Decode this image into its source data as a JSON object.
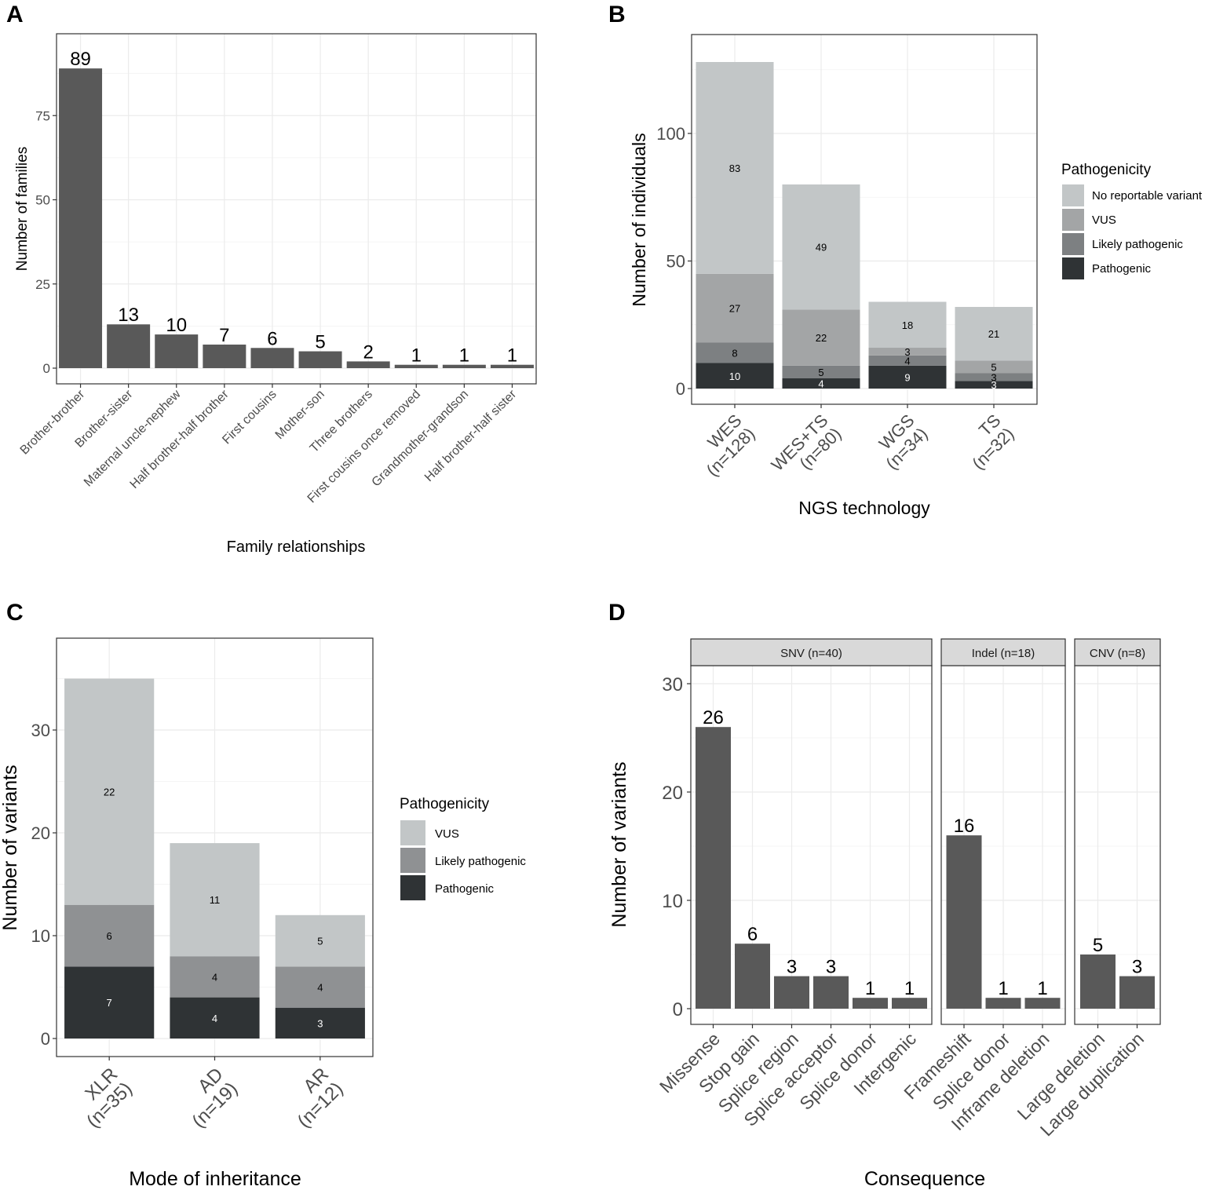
{
  "colors": {
    "bar": "#595959",
    "no_reportable": "#c2c6c7",
    "vus": "#a3a5a6",
    "likely_pathogenic": "#7d8082",
    "pathogenic": "#2f3335",
    "vus_c": "#c2c6c7",
    "likely_pathogenic_c": "#8f9193",
    "pathogenic_c": "#2f3335"
  },
  "panels": {
    "A": {
      "letter": "A"
    },
    "B": {
      "letter": "B",
      "legend_title": "Pathogenicity"
    },
    "C": {
      "letter": "C",
      "legend_title": "Pathogenicity"
    },
    "D": {
      "letter": "D"
    }
  },
  "chart_data": [
    {
      "panel": "A",
      "type": "bar",
      "title": "",
      "xlabel": "Family relationships",
      "ylabel": "Number of families",
      "ylim": [
        0,
        93
      ],
      "yticks": [
        0,
        25,
        50,
        75
      ],
      "categories": [
        "Brother-brother",
        "Brother-sister",
        "Maternal uncle-nephew",
        "Half brother-half brother",
        "First cousins",
        "Mother-son",
        "Three brothers",
        "First cousins once removed",
        "Grandmother-grandson",
        "Half brother-half sister"
      ],
      "values": [
        89,
        13,
        10,
        7,
        6,
        5,
        2,
        1,
        1,
        1
      ]
    },
    {
      "panel": "B",
      "type": "bar",
      "stacked": true,
      "xlabel": "NGS technology",
      "ylabel": "Number of individuals",
      "ylim": [
        0,
        134
      ],
      "yticks": [
        0,
        50,
        100
      ],
      "categories": [
        "WES (n=128)",
        "WES+TS (n=80)",
        "WGS (n=34)",
        "TS (n=32)"
      ],
      "category_lines": [
        [
          "WES",
          "(n=128)"
        ],
        [
          "WES+TS",
          "(n=80)"
        ],
        [
          "WGS",
          "(n=34)"
        ],
        [
          "TS",
          "(n=32)"
        ]
      ],
      "series": [
        {
          "name": "Pathogenic",
          "color_key": "pathogenic",
          "values": [
            10,
            4,
            9,
            3
          ]
        },
        {
          "name": "Likely pathogenic",
          "color_key": "likely_pathogenic",
          "values": [
            8,
            5,
            4,
            3
          ]
        },
        {
          "name": "VUS",
          "color_key": "vus",
          "values": [
            27,
            22,
            3,
            5
          ]
        },
        {
          "name": "No reportable variant",
          "color_key": "no_reportable",
          "values": [
            83,
            49,
            18,
            21
          ]
        }
      ],
      "legend_order": [
        "No reportable variant",
        "VUS",
        "Likely pathogenic",
        "Pathogenic"
      ],
      "legend_position": "right"
    },
    {
      "panel": "C",
      "type": "bar",
      "stacked": true,
      "xlabel": "Mode of inheritance",
      "ylabel": "Number of variants",
      "ylim": [
        0,
        38.5
      ],
      "yticks": [
        0,
        10,
        20,
        30
      ],
      "categories": [
        "XLR (n=35)",
        "AD (n=19)",
        "AR (n=12)"
      ],
      "category_lines": [
        [
          "XLR",
          "(n=35)"
        ],
        [
          "AD",
          "(n=19)"
        ],
        [
          "AR",
          "(n=12)"
        ]
      ],
      "series": [
        {
          "name": "Pathogenic",
          "color_key": "pathogenic_c",
          "values": [
            7,
            4,
            3
          ]
        },
        {
          "name": "Likely pathogenic",
          "color_key": "likely_pathogenic_c",
          "values": [
            6,
            4,
            4
          ]
        },
        {
          "name": "VUS",
          "color_key": "vus_c",
          "values": [
            22,
            11,
            5
          ]
        }
      ],
      "legend_order": [
        "VUS",
        "Likely pathogenic",
        "Pathogenic"
      ],
      "legend_position": "right"
    },
    {
      "panel": "D",
      "type": "bar",
      "faceted": true,
      "xlabel": "Consequence",
      "ylabel": "Number of variants",
      "ylim": [
        0,
        32
      ],
      "yticks": [
        0,
        10,
        20,
        30
      ],
      "facets": [
        {
          "label": "SNV (n=40)",
          "categories": [
            "Missense",
            "Stop gain",
            "Splice region",
            "Splice acceptor",
            "Splice donor",
            "Intergenic"
          ],
          "values": [
            26,
            6,
            3,
            3,
            1,
            1
          ]
        },
        {
          "label": "Indel (n=18)",
          "categories": [
            "Frameshift",
            "Splice donor",
            "Inframe deletion"
          ],
          "values": [
            16,
            1,
            1
          ]
        },
        {
          "label": "CNV (n=8)",
          "categories": [
            "Large deletion",
            "Large duplication"
          ],
          "values": [
            5,
            3
          ]
        }
      ]
    }
  ]
}
